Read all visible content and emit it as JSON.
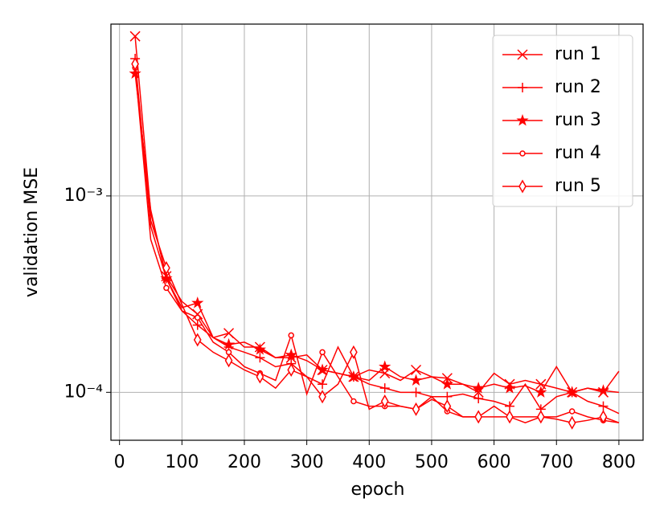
{
  "chart_data": {
    "type": "line",
    "xlabel": "epoch",
    "ylabel": "validation MSE",
    "yscale": "log",
    "grid": true,
    "legend": "upper right",
    "x": [
      25,
      50,
      75,
      100,
      125,
      150,
      175,
      200,
      225,
      250,
      275,
      300,
      325,
      350,
      375,
      400,
      425,
      450,
      475,
      500,
      525,
      550,
      575,
      600,
      625,
      650,
      675,
      700,
      725,
      750,
      775,
      800
    ],
    "xlim": [
      -13.75,
      838.75
    ],
    "xticks": [
      0,
      100,
      200,
      300,
      400,
      500,
      600,
      700,
      800
    ],
    "ylim": [
      5.7e-05,
      0.0075
    ],
    "yticks": [
      {
        "value": 0.001,
        "label": "10⁻³"
      },
      {
        "value": 0.0001,
        "label": "10⁻⁴"
      }
    ],
    "series": [
      {
        "name": "run 1",
        "color": "#ff0000",
        "marker": "x",
        "values": [
          0.0065,
          0.00082,
          0.00039,
          0.00029,
          0.00025,
          0.00019,
          0.0002,
          0.00017,
          0.00017,
          0.00015,
          0.00015,
          0.000155,
          0.00013,
          0.000125,
          0.00012,
          0.00013,
          0.000125,
          0.000115,
          0.00013,
          0.00012,
          0.000118,
          0.00011,
          0.0001,
          0.000125,
          0.00011,
          0.000115,
          0.00011,
          0.000105,
          0.0001,
          0.000105,
          0.0001,
          0.000128
        ]
      },
      {
        "name": "run 2",
        "color": "#ff0000",
        "marker": "+",
        "values": [
          0.005,
          0.0007,
          0.00038,
          0.00026,
          0.00022,
          0.00019,
          0.00017,
          0.00016,
          0.00015,
          0.000135,
          0.00014,
          0.00012,
          0.00011,
          0.00017,
          0.00012,
          0.00011,
          0.000105,
          0.0001,
          0.0001,
          9.5e-05,
          9.5e-05,
          9.8e-05,
          9.3e-05,
          9e-05,
          8.5e-05,
          0.00011,
          8.2e-05,
          9.5e-05,
          0.0001,
          9e-05,
          8.5e-05,
          7.8e-05
        ]
      },
      {
        "name": "run 3",
        "color": "#ff0000",
        "marker": "*",
        "values": [
          0.0042,
          0.00085,
          0.00038,
          0.00027,
          0.000285,
          0.00019,
          0.000175,
          0.00018,
          0.000165,
          0.00015,
          0.000155,
          0.000145,
          0.00013,
          0.000125,
          0.00012,
          0.000115,
          0.000135,
          0.00012,
          0.000115,
          0.00012,
          0.00011,
          0.00011,
          0.000105,
          0.00011,
          0.000105,
          0.000108,
          0.0001,
          0.000135,
          0.0001,
          0.000105,
          0.000102,
          0.0001
        ]
      },
      {
        "name": "run 4",
        "color": "#ff0000",
        "marker": "o",
        "values": [
          0.0045,
          0.0006,
          0.00034,
          0.00026,
          0.00024,
          0.00018,
          0.00016,
          0.000135,
          0.000125,
          0.000115,
          0.000195,
          9.8e-05,
          0.00016,
          0.00012,
          9e-05,
          8.5e-05,
          8.5e-05,
          8.5e-05,
          8.2e-05,
          9.5e-05,
          8e-05,
          7.5e-05,
          7.5e-05,
          8.5e-05,
          7.5e-05,
          7.5e-05,
          7.5e-05,
          7.5e-05,
          8e-05,
          7.5e-05,
          7.2e-05,
          7e-05
        ]
      },
      {
        "name": "run 5",
        "color": "#ff0000",
        "marker": "d",
        "values": [
          0.0047,
          0.00075,
          0.00043,
          0.00028,
          0.000185,
          0.00016,
          0.000145,
          0.00013,
          0.00012,
          0.000105,
          0.00013,
          0.00012,
          9.5e-05,
          0.00011,
          0.00016,
          8.2e-05,
          9e-05,
          8.5e-05,
          8.2e-05,
          9.2e-05,
          8.5e-05,
          7.5e-05,
          7.5e-05,
          7.5e-05,
          7.5e-05,
          7e-05,
          7.5e-05,
          7.3e-05,
          7e-05,
          7.2e-05,
          7.5e-05,
          7e-05
        ]
      }
    ]
  }
}
